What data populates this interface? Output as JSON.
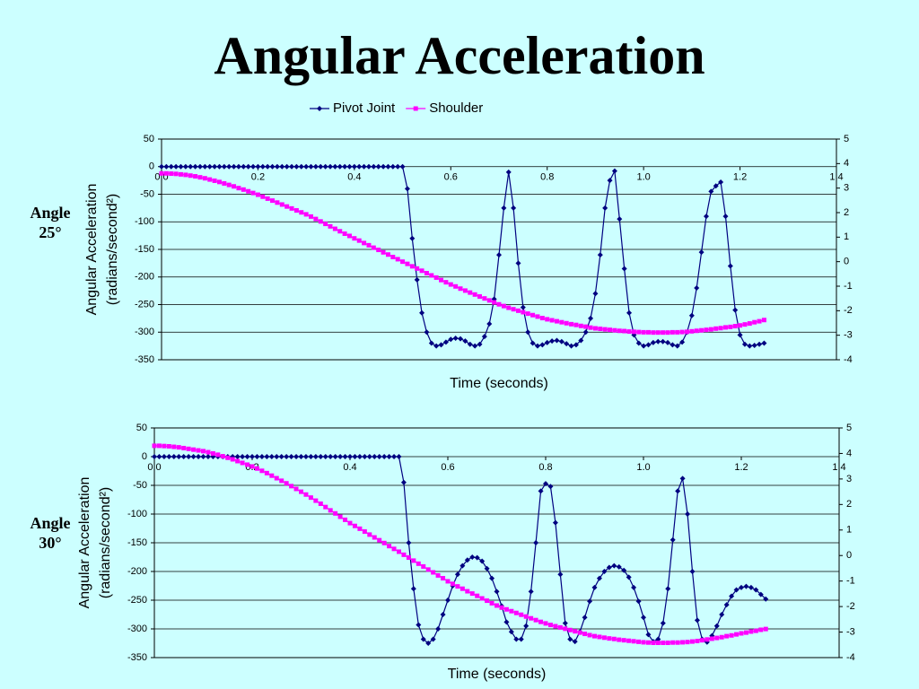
{
  "title": "Angular Acceleration",
  "chart_data": [
    {
      "type": "line",
      "label": "Angle 25°",
      "xlabel": "Time (seconds)",
      "ylabel": [
        "Angular Acceleration",
        "(radians/second²)"
      ],
      "legend": "top",
      "grid": true,
      "xlim": [
        0,
        1.4
      ],
      "xticks": [
        {
          "value": 0,
          "label": "0.0"
        },
        0.2,
        0.4,
        0.6,
        0.8,
        {
          "value": 1,
          "label": "1.0"
        },
        1.2,
        1.4
      ],
      "ylim": [
        -350,
        50
      ],
      "yticks": [
        -350,
        -300,
        -250,
        -200,
        -150,
        -100,
        -50,
        0,
        50
      ],
      "y2lim": [
        -4,
        5
      ],
      "y2ticks": [
        -4,
        -3,
        -2,
        -1,
        0,
        1,
        2,
        3,
        4,
        5
      ],
      "x": [
        0,
        0.01,
        0.02,
        0.03,
        0.04,
        0.05,
        0.06,
        0.07,
        0.08,
        0.09,
        0.1,
        0.11,
        0.12,
        0.13,
        0.14,
        0.15,
        0.16,
        0.17,
        0.18,
        0.19,
        0.2,
        0.21,
        0.22,
        0.23,
        0.24,
        0.25,
        0.26,
        0.27,
        0.28,
        0.29,
        0.3,
        0.31,
        0.32,
        0.33,
        0.34,
        0.35,
        0.36,
        0.37,
        0.38,
        0.39,
        0.4,
        0.41,
        0.42,
        0.43,
        0.44,
        0.45,
        0.46,
        0.47,
        0.48,
        0.49,
        0.5,
        0.51,
        0.52,
        0.53,
        0.54,
        0.55,
        0.56,
        0.57,
        0.58,
        0.59,
        0.6,
        0.61,
        0.62,
        0.63,
        0.64,
        0.65,
        0.66,
        0.67,
        0.68,
        0.69,
        0.7,
        0.71,
        0.72,
        0.73,
        0.74,
        0.75,
        0.76,
        0.77,
        0.78,
        0.79,
        0.8,
        0.81,
        0.82,
        0.83,
        0.84,
        0.85,
        0.86,
        0.87,
        0.88,
        0.89,
        0.9,
        0.91,
        0.92,
        0.93,
        0.94,
        0.95,
        0.96,
        0.97,
        0.98,
        0.99,
        1,
        1.01,
        1.02,
        1.03,
        1.04,
        1.05,
        1.06,
        1.07,
        1.08,
        1.09,
        1.1,
        1.11,
        1.12,
        1.13,
        1.14,
        1.15,
        1.16,
        1.17,
        1.18,
        1.19,
        1.2,
        1.21,
        1.22,
        1.23,
        1.24,
        1.25
      ],
      "series": [
        {
          "name": "Pivot Joint",
          "color": "#000080",
          "marker": "diamond",
          "values": [
            0,
            0,
            0,
            0,
            0,
            0,
            0,
            0,
            0,
            0,
            0,
            0,
            0,
            0,
            0,
            0,
            0,
            0,
            0,
            0,
            0,
            0,
            0,
            0,
            0,
            0,
            0,
            0,
            0,
            0,
            0,
            0,
            0,
            0,
            0,
            0,
            0,
            0,
            0,
            0,
            0,
            0,
            0,
            0,
            0,
            0,
            0,
            0,
            0,
            0,
            0,
            -40,
            -130,
            -205,
            -265,
            -300,
            -320,
            -325,
            -323,
            -318,
            -313,
            -311,
            -312,
            -316,
            -322,
            -325,
            -322,
            -308,
            -285,
            -240,
            -160,
            -75,
            -10,
            -75,
            -175,
            -255,
            -300,
            -320,
            -325,
            -323,
            -319,
            -316,
            -315,
            -317,
            -321,
            -325,
            -323,
            -315,
            -300,
            -275,
            -230,
            -160,
            -75,
            -25,
            -8,
            -95,
            -185,
            -265,
            -305,
            -320,
            -325,
            -323,
            -319,
            -317,
            -317,
            -319,
            -323,
            -325,
            -318,
            -300,
            -270,
            -220,
            -155,
            -90,
            -45,
            -35,
            -28,
            -90,
            -180,
            -260,
            -305,
            -322,
            -325,
            -324,
            -322,
            -320
          ]
        },
        {
          "name": "Shoulder",
          "color": "#ff00ff",
          "marker": "square",
          "axis": "y2",
          "values": [
            3.6,
            3.6,
            3.59,
            3.58,
            3.56,
            3.54,
            3.51,
            3.48,
            3.44,
            3.4,
            3.35,
            3.3,
            3.25,
            3.19,
            3.13,
            3.07,
            3.0,
            2.94,
            2.87,
            2.8,
            2.73,
            2.65,
            2.57,
            2.49,
            2.41,
            2.33,
            2.25,
            2.17,
            2.09,
            2.01,
            1.93,
            1.84,
            1.74,
            1.64,
            1.54,
            1.44,
            1.34,
            1.24,
            1.14,
            1.05,
            0.95,
            0.86,
            0.76,
            0.67,
            0.57,
            0.48,
            0.38,
            0.29,
            0.19,
            0.1,
            0,
            -0.09,
            -0.19,
            -0.28,
            -0.37,
            -0.47,
            -0.56,
            -0.65,
            -0.75,
            -0.84,
            -0.93,
            -1.01,
            -1.1,
            -1.18,
            -1.26,
            -1.34,
            -1.42,
            -1.5,
            -1.58,
            -1.66,
            -1.74,
            -1.81,
            -1.88,
            -1.94,
            -2,
            -2.06,
            -2.12,
            -2.18,
            -2.24,
            -2.3,
            -2.35,
            -2.39,
            -2.43,
            -2.47,
            -2.51,
            -2.55,
            -2.58,
            -2.62,
            -2.65,
            -2.69,
            -2.72,
            -2.74,
            -2.76,
            -2.78,
            -2.8,
            -2.82,
            -2.83,
            -2.85,
            -2.86,
            -2.87,
            -2.88,
            -2.88,
            -2.89,
            -2.89,
            -2.89,
            -2.89,
            -2.88,
            -2.88,
            -2.87,
            -2.86,
            -2.84,
            -2.82,
            -2.8,
            -2.78,
            -2.76,
            -2.73,
            -2.71,
            -2.68,
            -2.66,
            -2.63,
            -2.6,
            -2.56,
            -2.52,
            -2.47,
            -2.43,
            -2.38
          ]
        }
      ]
    },
    {
      "type": "line",
      "label": "Angle 30°",
      "xlabel": "Time (seconds)",
      "ylabel": [
        "Angular Acceleration",
        "(radians/second²)"
      ],
      "grid": true,
      "xlim": [
        0,
        1.4
      ],
      "xticks": [
        {
          "value": 0,
          "label": "0.0"
        },
        0.2,
        0.4,
        0.6,
        0.8,
        {
          "value": 1,
          "label": "1.0"
        },
        1.2,
        1.4
      ],
      "ylim": [
        -350,
        50
      ],
      "yticks": [
        -350,
        -300,
        -250,
        -200,
        -150,
        -100,
        -50,
        0,
        50
      ],
      "y2lim": [
        -4,
        5
      ],
      "y2ticks": [
        -4,
        -3,
        -2,
        -1,
        0,
        1,
        2,
        3,
        4,
        5
      ],
      "x": [
        0,
        0.01,
        0.02,
        0.03,
        0.04,
        0.05,
        0.06,
        0.07,
        0.08,
        0.09,
        0.1,
        0.11,
        0.12,
        0.13,
        0.14,
        0.15,
        0.16,
        0.17,
        0.18,
        0.19,
        0.2,
        0.21,
        0.22,
        0.23,
        0.24,
        0.25,
        0.26,
        0.27,
        0.28,
        0.29,
        0.3,
        0.31,
        0.32,
        0.33,
        0.34,
        0.35,
        0.36,
        0.37,
        0.38,
        0.39,
        0.4,
        0.41,
        0.42,
        0.43,
        0.44,
        0.45,
        0.46,
        0.47,
        0.48,
        0.49,
        0.5,
        0.51,
        0.52,
        0.53,
        0.54,
        0.55,
        0.56,
        0.57,
        0.58,
        0.59,
        0.6,
        0.61,
        0.62,
        0.63,
        0.64,
        0.65,
        0.66,
        0.67,
        0.68,
        0.69,
        0.7,
        0.71,
        0.72,
        0.73,
        0.74,
        0.75,
        0.76,
        0.77,
        0.78,
        0.79,
        0.8,
        0.81,
        0.82,
        0.83,
        0.84,
        0.85,
        0.86,
        0.87,
        0.88,
        0.89,
        0.9,
        0.91,
        0.92,
        0.93,
        0.94,
        0.95,
        0.96,
        0.97,
        0.98,
        0.99,
        1,
        1.01,
        1.02,
        1.03,
        1.04,
        1.05,
        1.06,
        1.07,
        1.08,
        1.09,
        1.1,
        1.11,
        1.12,
        1.13,
        1.14,
        1.15,
        1.16,
        1.17,
        1.18,
        1.19,
        1.2,
        1.21,
        1.22,
        1.23,
        1.24,
        1.25
      ],
      "series": [
        {
          "color": "#000080",
          "marker": "diamond",
          "values": [
            0,
            0,
            0,
            0,
            0,
            0,
            0,
            0,
            0,
            0,
            0,
            0,
            0,
            0,
            0,
            0,
            0,
            0,
            0,
            0,
            0,
            0,
            0,
            0,
            0,
            0,
            0,
            0,
            0,
            0,
            0,
            0,
            0,
            0,
            0,
            0,
            0,
            0,
            0,
            0,
            0,
            0,
            0,
            0,
            0,
            0,
            0,
            0,
            0,
            0,
            0,
            -45,
            -150,
            -230,
            -293,
            -318,
            -325,
            -318,
            -300,
            -275,
            -250,
            -225,
            -205,
            -190,
            -180,
            -175,
            -176,
            -182,
            -195,
            -212,
            -235,
            -260,
            -288,
            -305,
            -318,
            -318,
            -295,
            -235,
            -150,
            -60,
            -47,
            -52,
            -115,
            -205,
            -290,
            -318,
            -322,
            -305,
            -280,
            -252,
            -228,
            -212,
            -200,
            -193,
            -190,
            -192,
            -198,
            -210,
            -228,
            -252,
            -280,
            -310,
            -322,
            -318,
            -290,
            -230,
            -145,
            -60,
            -38,
            -100,
            -200,
            -285,
            -318,
            -323,
            -312,
            -295,
            -275,
            -258,
            -243,
            -232,
            -228,
            -226,
            -228,
            -232,
            -240,
            -248
          ]
        },
        {
          "color": "#ff00ff",
          "marker": "square",
          "axis": "y2",
          "values": [
            4.3,
            4.3,
            4.29,
            4.28,
            4.26,
            4.24,
            4.21,
            4.18,
            4.15,
            4.12,
            4.09,
            4.05,
            4,
            3.95,
            3.89,
            3.83,
            3.77,
            3.7,
            3.63,
            3.56,
            3.49,
            3.41,
            3.32,
            3.23,
            3.13,
            3.03,
            2.93,
            2.83,
            2.72,
            2.61,
            2.5,
            2.39,
            2.27,
            2.15,
            2.03,
            1.9,
            1.77,
            1.65,
            1.52,
            1.4,
            1.27,
            1.16,
            1.05,
            0.94,
            0.82,
            0.71,
            0.6,
            0.49,
            0.37,
            0.26,
            0.15,
            0.03,
            -0.08,
            -0.2,
            -0.32,
            -0.43,
            -0.55,
            -0.66,
            -0.78,
            -0.89,
            -1.01,
            -1.11,
            -1.21,
            -1.3,
            -1.4,
            -1.49,
            -1.58,
            -1.68,
            -1.77,
            -1.87,
            -1.96,
            -2.04,
            -2.11,
            -2.18,
            -2.25,
            -2.32,
            -2.39,
            -2.46,
            -2.53,
            -2.6,
            -2.66,
            -2.72,
            -2.77,
            -2.82,
            -2.87,
            -2.92,
            -2.97,
            -3.02,
            -3.07,
            -3.12,
            -3.16,
            -3.19,
            -3.22,
            -3.25,
            -3.27,
            -3.3,
            -3.32,
            -3.34,
            -3.36,
            -3.38,
            -3.4,
            -3.41,
            -3.42,
            -3.42,
            -3.42,
            -3.42,
            -3.41,
            -3.41,
            -3.4,
            -3.39,
            -3.37,
            -3.35,
            -3.32,
            -3.29,
            -3.26,
            -3.23,
            -3.2,
            -3.16,
            -3.13,
            -3.09,
            -3.05,
            -3.02,
            -2.98,
            -2.95,
            -2.91,
            -2.88
          ]
        }
      ]
    }
  ]
}
